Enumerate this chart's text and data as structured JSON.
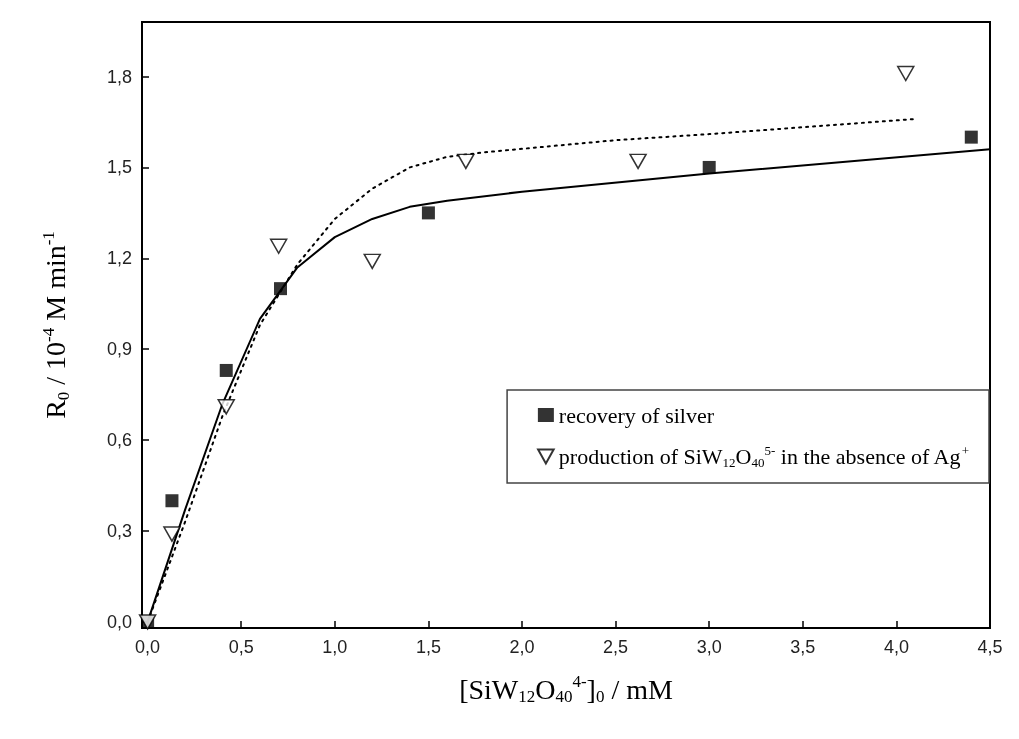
{
  "chart_data": {
    "type": "scatter",
    "xlabel": "[SiW$_{12}$O$_{40}$$^{4-}$]$_{0}$ / mM",
    "ylabel": "R$_{0}$ / 10$^{-4}$ M min$^{-1}$",
    "xlim": [
      -0.03,
      4.5
    ],
    "ylim": [
      -0.02,
      1.98
    ],
    "xticks": [
      {
        "value": 0,
        "label": "0,0"
      },
      {
        "value": 0.5,
        "label": "0,5"
      },
      {
        "value": 1,
        "label": "1,0"
      },
      {
        "value": 1.5,
        "label": "1,5"
      },
      {
        "value": 2,
        "label": "2,0"
      },
      {
        "value": 2.5,
        "label": "2,5"
      },
      {
        "value": 3,
        "label": "3,0"
      },
      {
        "value": 3.5,
        "label": "3,5"
      },
      {
        "value": 4,
        "label": "4,0"
      },
      {
        "value": 4.5,
        "label": "4,5"
      }
    ],
    "yticks": [
      {
        "value": 0,
        "label": "0,0"
      },
      {
        "value": 0.3,
        "label": "0,3"
      },
      {
        "value": 0.6,
        "label": "0,6"
      },
      {
        "value": 0.9,
        "label": "0,9"
      },
      {
        "value": 1.2,
        "label": "1,2"
      },
      {
        "value": 1.5,
        "label": "1,5"
      },
      {
        "value": 1.8,
        "label": "1,8"
      }
    ],
    "grid": false,
    "legend": "right",
    "series": [
      {
        "name": "recovery of silver",
        "color": "#000000",
        "marker": "square",
        "x": [
          0,
          0.13,
          0.42,
          0.71,
          1.5,
          3.0,
          4.4
        ],
        "values": [
          0,
          0.4,
          0.83,
          1.1,
          1.35,
          1.5,
          1.6
        ]
      },
      {
        "name": "production of SiW$_{12}$O$_{40}$$^{5-}$ in the absence of Ag$^{+}$",
        "color": "#000000",
        "marker": "triangle",
        "x": [
          0,
          0.13,
          0.42,
          0.7,
          1.2,
          1.7,
          2.62,
          4.05
        ],
        "values": [
          0,
          0.29,
          0.71,
          1.24,
          1.19,
          1.52,
          1.52,
          1.81
        ]
      },
      {
        "type": "line",
        "color": "#000000",
        "marker": "none",
        "line_style": "solid",
        "x": [
          0,
          0.2,
          0.4,
          0.6,
          0.8,
          1.0,
          1.2,
          1.4,
          1.6,
          2.0,
          3.0,
          4.5
        ],
        "values": [
          0,
          0.37,
          0.72,
          1.0,
          1.17,
          1.27,
          1.33,
          1.37,
          1.39,
          1.42,
          1.48,
          1.56
        ]
      },
      {
        "type": "line",
        "color": "#000000",
        "marker": "none",
        "line_style": "dotted",
        "x": [
          0,
          0.2,
          0.4,
          0.6,
          0.8,
          1.0,
          1.2,
          1.4,
          1.6,
          1.8,
          2.5,
          3.0,
          4.1
        ],
        "values": [
          0,
          0.33,
          0.68,
          0.98,
          1.18,
          1.33,
          1.43,
          1.5,
          1.535,
          1.55,
          1.59,
          1.61,
          1.66
        ]
      }
    ]
  }
}
